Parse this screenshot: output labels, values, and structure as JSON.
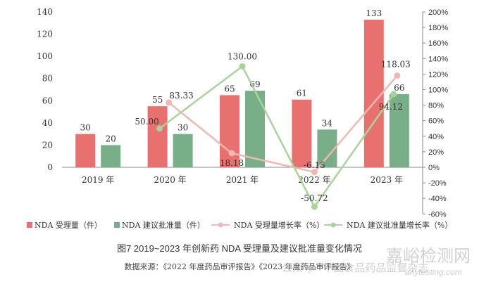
{
  "chart_data": {
    "type": "bar+line",
    "categories": [
      "2019 年",
      "2020 年",
      "2021 年",
      "2022 年",
      "2023 年"
    ],
    "series": [
      {
        "name": "NDA 受理量（件）",
        "type": "bar",
        "axis": "left",
        "color": "#e8706f",
        "values": [
          30,
          55,
          65,
          61,
          133
        ]
      },
      {
        "name": "NDA 建议批准量（件）",
        "type": "bar",
        "axis": "left",
        "color": "#78ae88",
        "values": [
          20,
          30,
          69,
          34,
          66
        ]
      },
      {
        "name": "NDA 受理量增长率（%）",
        "type": "line",
        "axis": "right",
        "color": "#f0b8b0",
        "values": [
          null,
          83.33,
          18.18,
          -6.15,
          118.03
        ],
        "labels": [
          "",
          "83.33",
          "18.18",
          "-6.15",
          "118.03"
        ]
      },
      {
        "name": "NDA 建议批准量增长率（%）",
        "type": "line",
        "axis": "right",
        "color": "#a8d49a",
        "values": [
          null,
          50.0,
          130.0,
          -50.72,
          94.12
        ],
        "labels": [
          "",
          "50.00",
          "130.00",
          "-50.72",
          "94.12"
        ]
      }
    ],
    "left_axis": {
      "ylim": [
        0,
        140
      ],
      "ticks": [
        "0",
        "20",
        "40",
        "60",
        "80",
        "100",
        "120",
        "140"
      ]
    },
    "right_axis": {
      "ylim": [
        -60,
        200
      ],
      "ticks": [
        "-60%",
        "-40%",
        "-20%",
        "0%",
        "20%",
        "40%",
        "60%",
        "80%",
        "100%",
        "120%",
        "140%",
        "160%",
        "180%",
        "200%"
      ]
    },
    "legend_placement": "bottom",
    "title": "图7   2019~2023 年创新药 NDA 受理量及建议批准量变化情况"
  },
  "caption": {
    "title": "图7   2019~2023 年创新药 NDA 受理量及建议批准量变化情况",
    "source": "数据来源：《2022 年度药品审评报告》《2023 年度药品审评报告》"
  },
  "watermarks": {
    "site": "嘉峪检测网",
    "site_url": "anytesting.com",
    "account": "公众号 · 中国食品药品监督杂志"
  }
}
